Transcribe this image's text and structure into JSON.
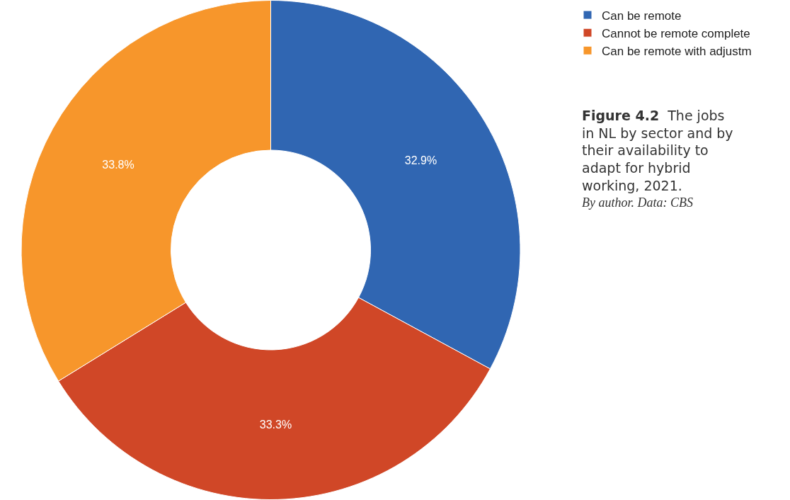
{
  "chart_data": {
    "type": "donut",
    "title": "Figure 4.2",
    "subtitle": "The jobs in NL by sector and by their availability to adapt for hybrid working, 2021.",
    "annotations": [
      "By author. Data: CBS"
    ],
    "categories": [
      "Can be remote",
      "Cannot be remote complete",
      "Can be remote with adjustm"
    ],
    "values": [
      32.9,
      33.3,
      33.8
    ],
    "value_labels": [
      "32.9%",
      "33.3%",
      "33.8%"
    ],
    "colors": [
      "#3066b2",
      "#d04727",
      "#f7962b"
    ],
    "legend": "top right"
  }
}
